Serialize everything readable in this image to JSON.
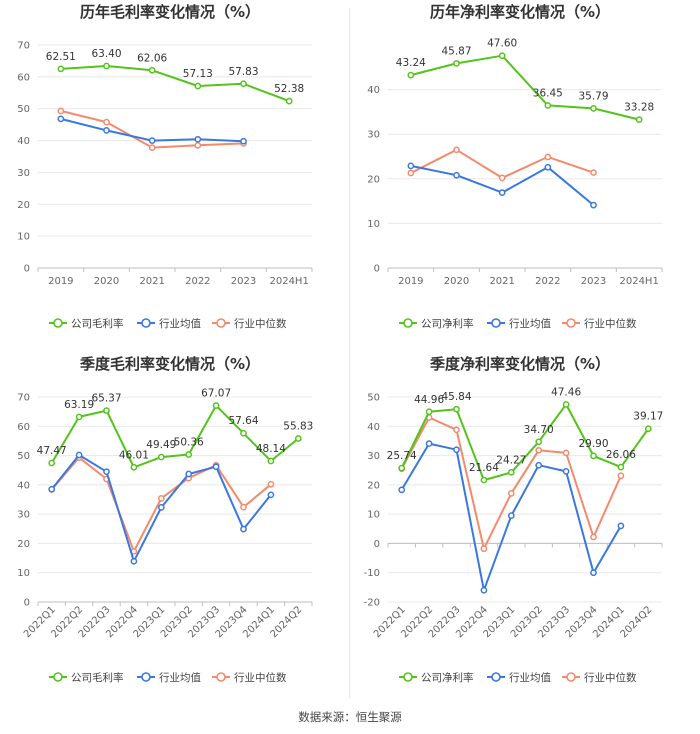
{
  "colors": {
    "company": "#52c41a",
    "avg": "#3a78e0",
    "median": "#f4896b"
  },
  "source": "数据来源：恒生聚源",
  "chart_data": [
    {
      "id": "annual-gross",
      "type": "line",
      "title": "历年毛利率变化情况（%）",
      "categories": [
        "2019",
        "2020",
        "2021",
        "2022",
        "2023",
        "2024H1"
      ],
      "ylim": [
        0,
        70
      ],
      "yticks": [
        0,
        10,
        20,
        30,
        40,
        50,
        60,
        70
      ],
      "rotate_x": false,
      "series": [
        {
          "name": "公司毛利率",
          "key": "company",
          "values": [
            62.51,
            63.4,
            62.06,
            57.13,
            57.83,
            52.38
          ],
          "labels": true
        },
        {
          "name": "行业均值",
          "key": "avg",
          "values": [
            46.8,
            43.2,
            40.0,
            40.4,
            39.8,
            null
          ],
          "labels": false
        },
        {
          "name": "行业中位数",
          "key": "median",
          "values": [
            49.3,
            45.8,
            37.8,
            38.5,
            39.1,
            null
          ],
          "labels": false
        }
      ]
    },
    {
      "id": "annual-net",
      "type": "line",
      "title": "历年净利率变化情况（%）",
      "categories": [
        "2019",
        "2020",
        "2021",
        "2022",
        "2023",
        "2024H1"
      ],
      "ylim": [
        0,
        50
      ],
      "yticks": [
        0,
        10,
        20,
        30,
        40
      ],
      "rotate_x": false,
      "series": [
        {
          "name": "公司净利率",
          "key": "company",
          "values": [
            43.24,
            45.87,
            47.6,
            36.45,
            35.79,
            33.28
          ],
          "labels": true
        },
        {
          "name": "行业均值",
          "key": "avg",
          "values": [
            22.9,
            20.8,
            16.9,
            22.6,
            14.1,
            null
          ],
          "labels": false
        },
        {
          "name": "行业中位数",
          "key": "median",
          "values": [
            21.3,
            26.5,
            20.2,
            24.9,
            21.4,
            null
          ],
          "labels": false
        }
      ]
    },
    {
      "id": "quarterly-gross",
      "type": "line",
      "title": "季度毛利率变化情况（%）",
      "categories": [
        "2022Q1",
        "2022Q2",
        "2022Q3",
        "2022Q4",
        "2023Q1",
        "2023Q2",
        "2023Q3",
        "2023Q4",
        "2024Q1",
        "2024Q2"
      ],
      "ylim": [
        0,
        70
      ],
      "yticks": [
        0,
        10,
        20,
        30,
        40,
        50,
        60,
        70
      ],
      "rotate_x": true,
      "series": [
        {
          "name": "公司毛利率",
          "key": "company",
          "values": [
            47.47,
            63.19,
            65.37,
            46.01,
            49.49,
            50.36,
            67.07,
            57.64,
            48.14,
            55.83
          ],
          "labels": true
        },
        {
          "name": "行业均值",
          "key": "avg",
          "values": [
            38.5,
            50.2,
            44.5,
            13.9,
            32.3,
            43.7,
            46.2,
            24.9,
            36.6,
            null
          ],
          "labels": false
        },
        {
          "name": "行业中位数",
          "key": "median",
          "values": [
            38.4,
            49.3,
            42.0,
            17.3,
            35.4,
            42.3,
            46.7,
            32.4,
            40.2,
            null
          ],
          "labels": false
        }
      ]
    },
    {
      "id": "quarterly-net",
      "type": "line",
      "title": "季度净利率变化情况（%）",
      "categories": [
        "2022Q1",
        "2022Q2",
        "2022Q3",
        "2022Q4",
        "2023Q1",
        "2023Q2",
        "2023Q3",
        "2023Q4",
        "2024Q1",
        "2024Q2"
      ],
      "ylim": [
        -20,
        50
      ],
      "yticks": [
        -20,
        -10,
        0,
        10,
        20,
        30,
        40,
        50
      ],
      "rotate_x": true,
      "series": [
        {
          "name": "公司净利率",
          "key": "company",
          "values": [
            25.74,
            44.96,
            45.84,
            21.64,
            24.27,
            34.7,
            47.46,
            29.9,
            26.06,
            39.17
          ],
          "labels": true
        },
        {
          "name": "行业均值",
          "key": "avg",
          "values": [
            18.3,
            34.1,
            32.0,
            -16.0,
            9.5,
            26.7,
            24.6,
            -10.0,
            6.0,
            null
          ],
          "labels": false
        },
        {
          "name": "行业中位数",
          "key": "median",
          "values": [
            25.5,
            43.0,
            38.8,
            -1.8,
            17.1,
            31.8,
            30.9,
            2.2,
            23.1,
            null
          ],
          "labels": false
        }
      ]
    }
  ]
}
